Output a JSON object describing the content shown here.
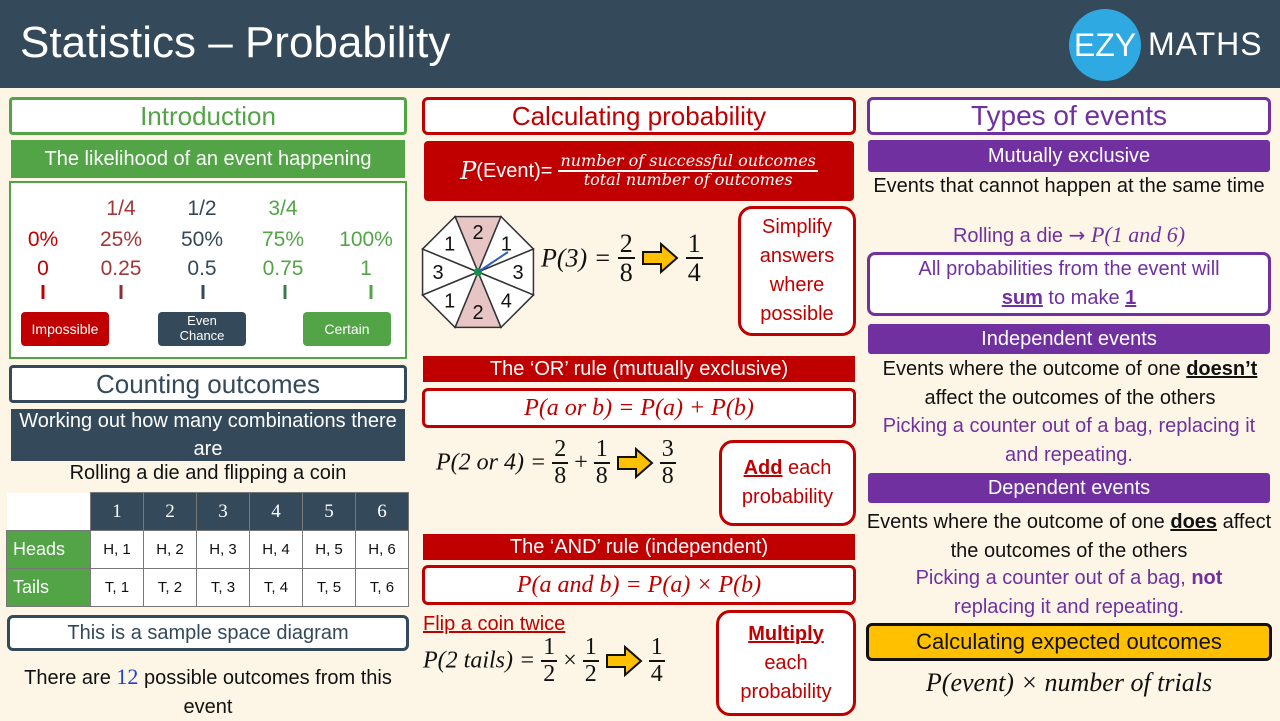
{
  "header": {
    "title": "Statistics – Probability",
    "logo_left": "EZY",
    "logo_right": "MATHS"
  },
  "intro": {
    "heading": "Introduction",
    "subtitle": "The likelihood of an event happening",
    "fractions": [
      "1/4",
      "1/2",
      "3/4"
    ],
    "percents": [
      "0%",
      "25%",
      "50%",
      "75%",
      "100%"
    ],
    "decimals": [
      "0",
      "0.25",
      "0.5",
      "0.75",
      "1"
    ],
    "labels": {
      "impossible": "Impossible",
      "even": "Even Chance",
      "certain": "Certain"
    }
  },
  "counting": {
    "heading": "Counting outcomes",
    "subtitle": "Working out how many combinations there are",
    "caption": "Rolling a die and flipping a coin",
    "table": {
      "columns": [
        "1",
        "2",
        "3",
        "4",
        "5",
        "6"
      ],
      "rows": [
        {
          "label": "Heads",
          "cells": [
            "H, 1",
            "H, 2",
            "H, 3",
            "H, 4",
            "H, 5",
            "H, 6"
          ]
        },
        {
          "label": "Tails",
          "cells": [
            "T, 1",
            "T, 2",
            "T, 3",
            "T, 4",
            "T, 5",
            "T, 6"
          ]
        }
      ]
    },
    "note": "This is a sample space diagram",
    "outcomes_pre": "There are",
    "outcomes_count": "12",
    "outcomes_post": "possible outcomes from this event"
  },
  "calc": {
    "heading": "Calculating probability",
    "formula_lhs_p": "P",
    "formula_lhs_event": "(Event)=",
    "formula_num": "number of successful outcomes",
    "formula_den": "total number of outcomes",
    "spinner_numbers": [
      "2",
      "1",
      "3",
      "4",
      "2",
      "1",
      "3",
      "1"
    ],
    "example_lhs": "P(3) =",
    "example_num": "2",
    "example_den": "8",
    "example_res_num": "1",
    "example_res_den": "4",
    "simplify": "Simplify answers where possible",
    "or_bar": "The ‘OR’ rule (mutually exclusive)",
    "or_formula": "P(a or b) = P(a) + P(b)",
    "or_ex_lhs": "P(2 or 4) =",
    "or_f1": [
      "2",
      "8"
    ],
    "or_f2": [
      "1",
      "8"
    ],
    "or_res": [
      "3",
      "8"
    ],
    "or_note_bold": "Add",
    "or_note_rest": "each probability",
    "and_bar": "The ‘AND’ rule (independent)",
    "and_formula": "P(a and b) = P(a) × P(b)",
    "flip_label": "Flip a coin twice",
    "and_ex_lhs": "P(2 tails) =",
    "and_f1": [
      "1",
      "2"
    ],
    "and_f2": [
      "1",
      "2"
    ],
    "and_res": [
      "1",
      "4"
    ],
    "and_note_bold": "Multiply",
    "and_note_rest": "each probability"
  },
  "types": {
    "heading": "Types of events",
    "me_bar": "Mutually exclusive",
    "me_text": "Events that cannot happen at the same time",
    "me_example_text": "Rolling a die",
    "me_example_math": "P(1 and 6)",
    "me_box_pre": "All probabilities from the event will",
    "me_box_bold": "sum",
    "me_box_mid": "to make",
    "me_box_one": "1",
    "ind_bar": "Independent events",
    "ind_text_pre": "Events where the outcome of one",
    "ind_text_bold": "doesn’t",
    "ind_text_post": "affect the outcomes of the others",
    "ind_example": "Picking a counter out of a bag, replacing it and repeating.",
    "dep_bar": "Dependent events",
    "dep_text_pre": "Events where the outcome of one",
    "dep_text_bold": "does",
    "dep_text_post": "affect the outcomes of the others",
    "dep_example_pre": "Picking a counter out of a bag,",
    "dep_example_bold": "not",
    "dep_example_post": "replacing it and repeating.",
    "expected_bar": "Calculating expected outcomes",
    "expected_formula": "P(event) × number of trials"
  },
  "colors": {
    "green": "#53a447",
    "dark": "#34495a",
    "red": "#c00000",
    "purple": "#7030a0",
    "blue": "#2fa9e1",
    "yellow": "#ffc000"
  }
}
